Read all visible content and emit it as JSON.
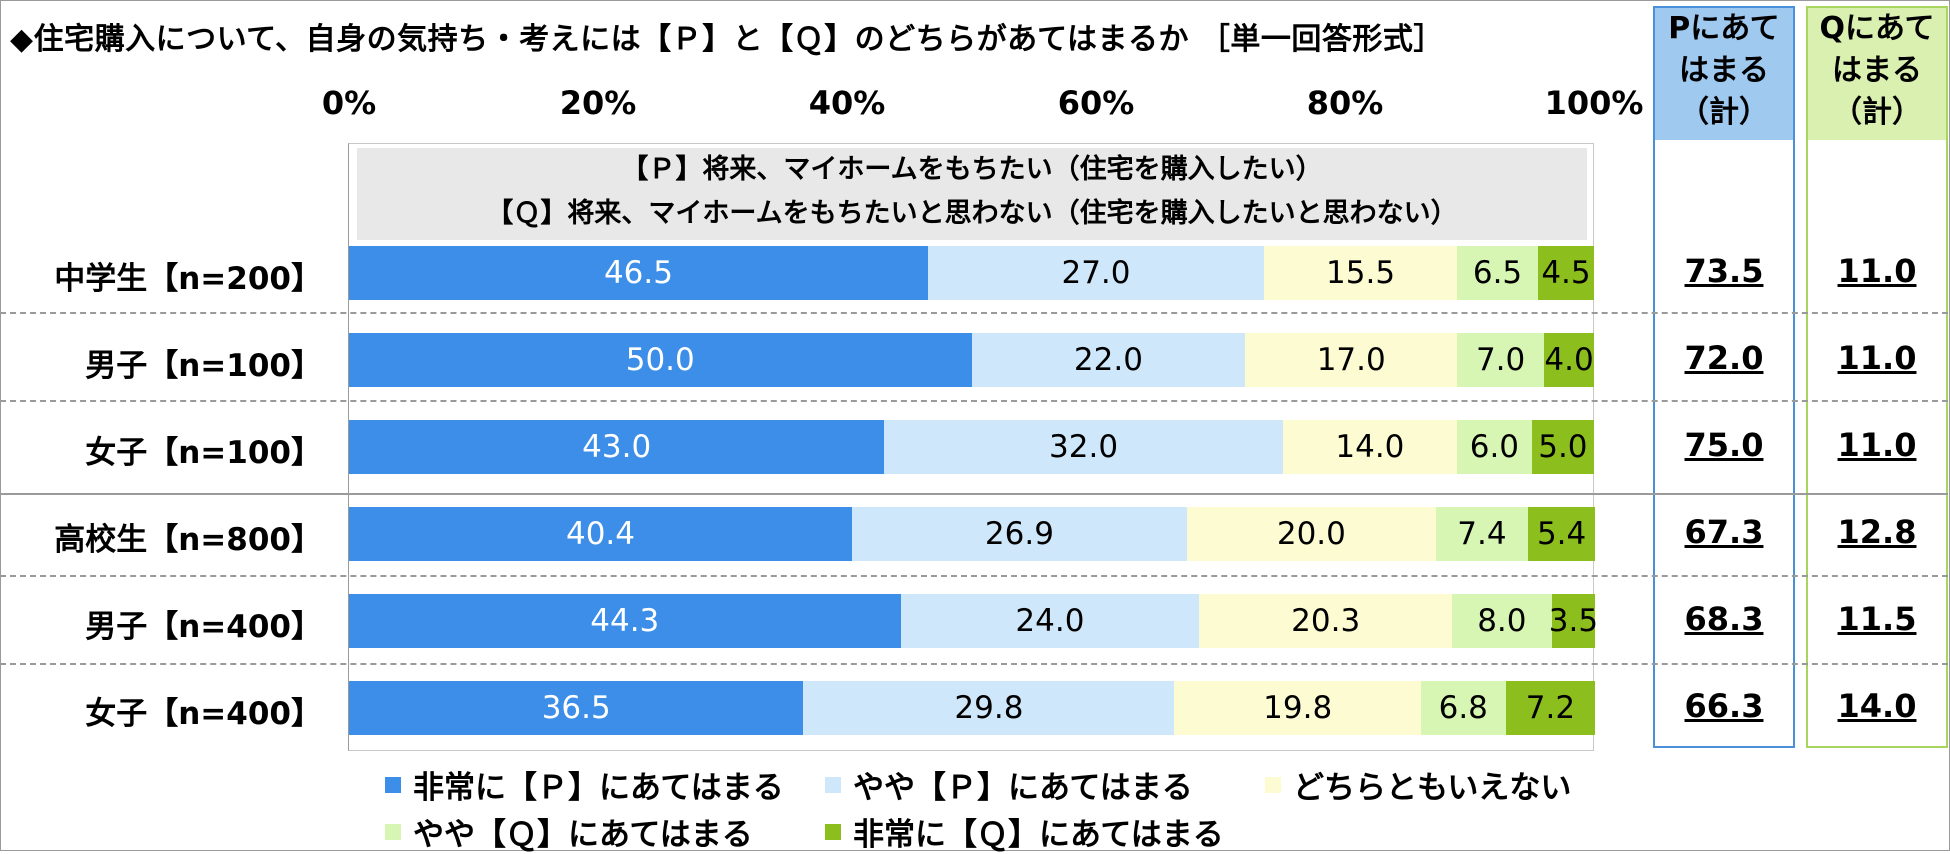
{
  "title": "◆住宅購入について、自身の気持ち・考えには【Ｐ】と【Ｑ】のどちらがあてはまるか ［単一回答形式］",
  "chart_data": {
    "type": "bar",
    "orientation": "horizontal",
    "stacked": true,
    "xlim": [
      0,
      100
    ],
    "ticks": [
      "0%",
      "20%",
      "40%",
      "60%",
      "80%",
      "100%"
    ],
    "description_lines": [
      "【Ｐ】将来、マイホームをもちたい（住宅を購入したい）",
      "【Ｑ】将来、マイホームをもちたいと思わない（住宅を購入したいと思わない）"
    ],
    "categories": [
      "中学生【n=200】",
      "男子【n=100】",
      "女子【n=100】",
      "高校生【n=800】",
      "男子【n=400】",
      "女子【n=400】"
    ],
    "series": [
      {
        "name": "非常に【Ｐ】にあてはまる",
        "color": "#3c8ee8",
        "values": [
          46.5,
          50.0,
          43.0,
          40.4,
          44.3,
          36.5
        ],
        "labels": [
          "46.5",
          "50.0",
          "43.0",
          "40.4",
          "44.3",
          "36.5"
        ]
      },
      {
        "name": "やや【Ｐ】にあてはまる",
        "color": "#cfe7fa",
        "values": [
          27.0,
          22.0,
          32.0,
          26.9,
          24.0,
          29.8
        ],
        "labels": [
          "27.0",
          "22.0",
          "32.0",
          "26.9",
          "24.0",
          "29.8"
        ]
      },
      {
        "name": "どちらともいえない",
        "color": "#fdfbd2",
        "values": [
          15.5,
          17.0,
          14.0,
          20.0,
          20.3,
          19.8
        ],
        "labels": [
          "15.5",
          "17.0",
          "14.0",
          "20.0",
          "20.3",
          "19.8"
        ]
      },
      {
        "name": "やや【Ｑ】にあてはまる",
        "color": "#d7f5b3",
        "values": [
          6.5,
          7.0,
          6.0,
          7.4,
          8.0,
          6.8
        ],
        "labels": [
          "6.5",
          "7.0",
          "6.0",
          "7.4",
          "8.0",
          "6.8"
        ]
      },
      {
        "name": "非常に【Ｑ】にあてはまる",
        "color": "#8cbf1e",
        "values": [
          4.5,
          4.0,
          5.0,
          5.4,
          3.5,
          7.2
        ],
        "labels": [
          "4.5",
          "4.0",
          "5.0",
          "5.4",
          "3.5",
          "7.2"
        ]
      }
    ],
    "summary_columns": [
      {
        "header": [
          "Pにあて",
          "はまる",
          "（計）"
        ],
        "values": [
          "73.5",
          "72.0",
          "75.0",
          "67.3",
          "68.3",
          "66.3"
        ]
      },
      {
        "header": [
          "Qにあて",
          "はまる",
          "（計）"
        ],
        "values": [
          "11.0",
          "11.0",
          "11.0",
          "12.8",
          "11.5",
          "14.0"
        ]
      }
    ],
    "legend_placement": "bottom"
  }
}
